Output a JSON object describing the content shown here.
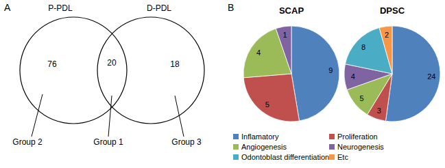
{
  "panels": [
    "A",
    "B"
  ],
  "venn": {
    "sets": [
      {
        "label": "P-PDL"
      },
      {
        "label": "D-PDL"
      }
    ],
    "regions": [
      {
        "value": 76,
        "group": "Group 2"
      },
      {
        "value": 20,
        "group": "Group 1"
      },
      {
        "value": 18,
        "group": "Group 3"
      }
    ]
  },
  "chart_data": [
    {
      "type": "pie",
      "title": "SCAP",
      "categories": [
        "Inflamatory",
        "Proliferation",
        "Angiogenesis",
        "Neurogenesis"
      ],
      "values": [
        9,
        5,
        4,
        1
      ],
      "colors": [
        "#4f81bd",
        "#c0504d",
        "#9bbb59",
        "#8064a2"
      ],
      "data_labels": true
    },
    {
      "type": "pie",
      "title": "DPSC",
      "categories": [
        "Inflamatory",
        "Proliferation",
        "Angiogenesis",
        "Neurogenesis",
        "Odontoblast differentiation",
        "Etc"
      ],
      "values": [
        24,
        3,
        5,
        4,
        8,
        2
      ],
      "colors": [
        "#4f81bd",
        "#c0504d",
        "#9bbb59",
        "#8064a2",
        "#4bacc6",
        "#f79646"
      ],
      "data_labels": true
    }
  ]
}
